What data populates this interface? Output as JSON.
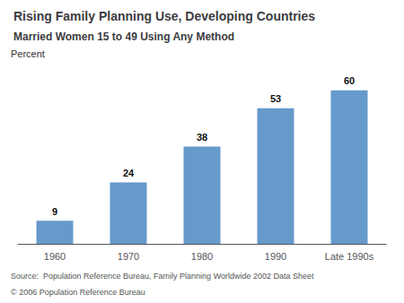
{
  "chart_data": {
    "type": "bar",
    "title": "Rising Family Planning Use, Developing Countries",
    "subtitle": "Married Women 15 to 49 Using Any Method",
    "ylabel": "Percent",
    "categories": [
      "1960",
      "1970",
      "1980",
      "1990",
      "Late 1990s"
    ],
    "values": [
      9,
      24,
      38,
      53,
      60
    ],
    "color": "#6699CC",
    "ylim": [
      0,
      68
    ],
    "data_labels": true,
    "tick_labels": "x",
    "grid": false,
    "annotations": [
      "Source:  Population Reference Bureau, Family Planning Worldwide 2002 Data Sheet",
      "© 2006 Population Reference Bureau"
    ]
  }
}
